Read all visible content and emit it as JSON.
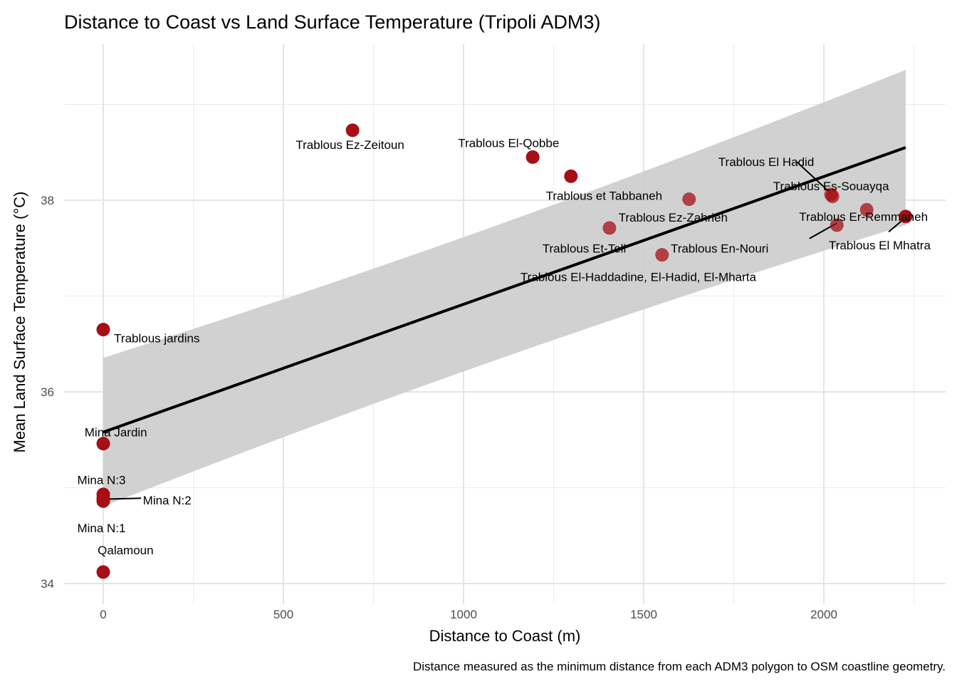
{
  "chart_data": {
    "type": "scatter",
    "title": "Distance to Coast vs Land Surface Temperature (Tripoli ADM3)",
    "xlabel": "Distance to Coast (m)",
    "ylabel": "Mean Land Surface Temperature (°C)",
    "caption": "Distance measured as the minimum distance from each ADM3 polygon to OSM coastline geometry.",
    "xlim": [
      -110,
      2330
    ],
    "ylim": [
      33.9,
      39.8
    ],
    "x_ticks": [
      0,
      500,
      1000,
      1500,
      2000
    ],
    "x_tick_labels": [
      "0",
      "500",
      "1000",
      "1500",
      "2000"
    ],
    "y_ticks": [
      34,
      36,
      38
    ],
    "y_tick_labels": [
      "34",
      "36",
      "38"
    ],
    "grid": true,
    "point_color": "#A50F15",
    "points": [
      {
        "name": "Qalamoun",
        "x": 0,
        "y": 34.12
      },
      {
        "name": "Mina N:1",
        "x": 0,
        "y": 34.86
      },
      {
        "name": "Mina N:2",
        "x": 0,
        "y": 34.89
      },
      {
        "name": "Mina N:3",
        "x": 0,
        "y": 34.93
      },
      {
        "name": "Mina Jardin",
        "x": 0,
        "y": 35.46
      },
      {
        "name": "Trablous jardins",
        "x": 0,
        "y": 36.65
      },
      {
        "name": "Trablous Ez-Zeitoun",
        "x": 692,
        "y": 38.73
      },
      {
        "name": "Trablous El-Qobbe",
        "x": 1192,
        "y": 38.45
      },
      {
        "name": "Trablous et Tabbaneh",
        "x": 1298,
        "y": 38.25
      },
      {
        "name": "Trablous Et-Tell",
        "x": 1405,
        "y": 37.71
      },
      {
        "name": "Trablous El-Haddadine, El-Hadid, El-Mharta",
        "x": 1551,
        "y": 37.43
      },
      {
        "name": "Trablous Ez-Zahrieh",
        "x": 1626,
        "y": 38.01
      },
      {
        "name": "Trablous Es-Souayqa",
        "x": 2024,
        "y": 38.04
      },
      {
        "name": "Trablous El Hadid",
        "x": 2020,
        "y": 38.06
      },
      {
        "name": "Trablous En-Nouri",
        "x": 2036,
        "y": 37.74
      },
      {
        "name": "Trablous Er-Remmaneh",
        "x": 2119,
        "y": 37.9
      },
      {
        "name": "Trablous El Mhatra",
        "x": 2227,
        "y": 37.83
      }
    ],
    "labels": [
      {
        "name": "Qalamoun",
        "lx": 62,
        "ly": 34.35,
        "anchor": "middle",
        "leader": false
      },
      {
        "name": "Mina N:1",
        "lx": -5,
        "ly": 34.58,
        "anchor": "middle",
        "leader": false
      },
      {
        "name": "Mina N:2",
        "lx": 110,
        "ly": 34.87,
        "anchor": "start",
        "leader": true
      },
      {
        "name": "Mina N:3",
        "lx": -5,
        "ly": 35.08,
        "anchor": "middle",
        "leader": false
      },
      {
        "name": "Mina Jardin",
        "lx": 35,
        "ly": 35.58,
        "anchor": "middle",
        "leader": false
      },
      {
        "name": "Trablous jardins",
        "lx": 30,
        "ly": 36.56,
        "anchor": "start",
        "leader": false
      },
      {
        "name": "Trablous Ez-Zeitoun",
        "lx": 685,
        "ly": 38.58,
        "anchor": "middle",
        "leader": false
      },
      {
        "name": "Trablous El-Qobbe",
        "lx": 1125,
        "ly": 38.6,
        "anchor": "middle",
        "leader": false
      },
      {
        "name": "Trablous et Tabbaneh",
        "lx": 1390,
        "ly": 38.05,
        "anchor": "middle",
        "leader": false
      },
      {
        "name": "Trablous Ez-Zahrieh",
        "lx": 1430,
        "ly": 37.82,
        "anchor": "start",
        "leader": false
      },
      {
        "name": "Trablous Et-Tell",
        "lx": 1335,
        "ly": 37.5,
        "anchor": "middle",
        "leader": false
      },
      {
        "name": "Trablous En-Nouri",
        "lx": 1575,
        "ly": 37.5,
        "anchor": "start",
        "leader": false
      },
      {
        "name": "Trablous El-Haddadine, El-Hadid, El-Mharta",
        "lx": 1485,
        "ly": 37.2,
        "anchor": "middle",
        "leader": false
      },
      {
        "name": "Trablous El Hadid",
        "lx": 1840,
        "ly": 38.4,
        "anchor": "middle",
        "leader": true
      },
      {
        "name": "Trablous Es-Souayqa",
        "lx": 2020,
        "ly": 38.15,
        "anchor": "middle",
        "leader": false
      },
      {
        "name": "Trablous Er-Remmaneh",
        "lx": 2110,
        "ly": 37.83,
        "anchor": "middle",
        "leader": false
      },
      {
        "name": "Trablous El Mhatra",
        "lx": 2155,
        "ly": 37.53,
        "anchor": "middle",
        "leader": true
      }
    ],
    "leaders": [
      {
        "name": "Mina N:2",
        "x1": 0,
        "y1": 34.88,
        "x2": 105,
        "y2": 34.89
      },
      {
        "name": "Trablous El Hadid",
        "x1": 1925,
        "y1": 38.4,
        "x2": 2020,
        "y2": 38.07
      },
      {
        "name": "Trablous En-Nouri",
        "x1": 1960,
        "y1": 37.6,
        "x2": 2036,
        "y2": 37.76
      },
      {
        "name": "Trablous El Mhatra",
        "x1": 2180,
        "y1": 37.67,
        "x2": 2227,
        "y2": 37.82
      }
    ],
    "fit": {
      "x": [
        0,
        2227
      ],
      "y": [
        35.58,
        38.55
      ],
      "ci_lower": [
        34.8,
        37.75
      ],
      "ci_upper": [
        36.35,
        39.37
      ],
      "line_color": "#000000",
      "band_color": "#CCCCCC"
    }
  }
}
